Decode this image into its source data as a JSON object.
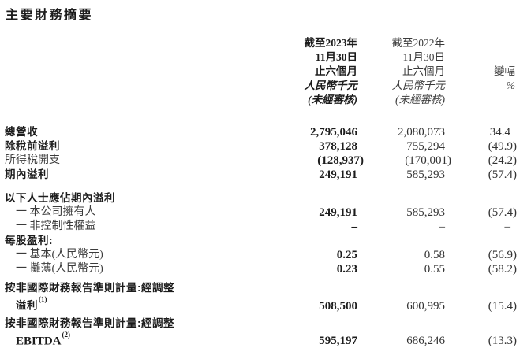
{
  "title": "主要財務摘要",
  "colors": {
    "background": "#ffffff",
    "text_primary": "#1c1c1c",
    "text_secondary": "#3a3a3a"
  },
  "table": {
    "header": {
      "y2023": {
        "lines": [
          "截至2023年",
          "11月30日",
          "止六個月",
          "人民幣千元",
          "(未經審核)"
        ]
      },
      "y2022": {
        "lines": [
          "截至2022年",
          "11月30日",
          "止六個月",
          "人民幣千元",
          "(未經審核)"
        ]
      },
      "change": {
        "label": "變幅",
        "unit": "%"
      }
    },
    "rows": [
      {
        "label": "總營收",
        "v2023": "2,795,046",
        "v2022": "2,080,073",
        "change": "34.4"
      },
      {
        "label": "除稅前溢利",
        "v2023": "378,128",
        "v2022": "755,294",
        "change": "(49.9)"
      },
      {
        "label": "所得稅開支",
        "v2023": "(128,937)",
        "v2022": "(170,001)",
        "change": "(24.2)"
      },
      {
        "label": "期內溢利",
        "v2023": "249,191",
        "v2022": "585,293",
        "change": "(57.4)"
      },
      {
        "label": "以下人士應佔期內溢利",
        "v2023": "",
        "v2022": "",
        "change": ""
      },
      {
        "label": "一 本公司擁有人",
        "v2023": "249,191",
        "v2022": "585,293",
        "change": "(57.4)"
      },
      {
        "label": "一 非控制性權益",
        "v2023": "–",
        "v2022": "–",
        "change": "–"
      },
      {
        "label": "每股盈利:",
        "v2023": "",
        "v2022": "",
        "change": ""
      },
      {
        "label": "一 基本(人民幣元)",
        "v2023": "0.25",
        "v2022": "0.58",
        "change": "(56.9)"
      },
      {
        "label": "一 攤薄(人民幣元)",
        "v2023": "0.23",
        "v2022": "0.55",
        "change": "(58.2)"
      },
      {
        "label_line1": "按非國際財務報告準則計量:經調整",
        "label_line2": "溢利",
        "footnote": "(1)",
        "v2023": "508,500",
        "v2022": "600,995",
        "change": "(15.4)"
      },
      {
        "label_line1": "按非國際財務報告準則計量:經調整",
        "label_line2": "EBITDA",
        "footnote": "(2)",
        "v2023": "595,197",
        "v2022": "686,246",
        "change": "(13.3)"
      }
    ]
  }
}
